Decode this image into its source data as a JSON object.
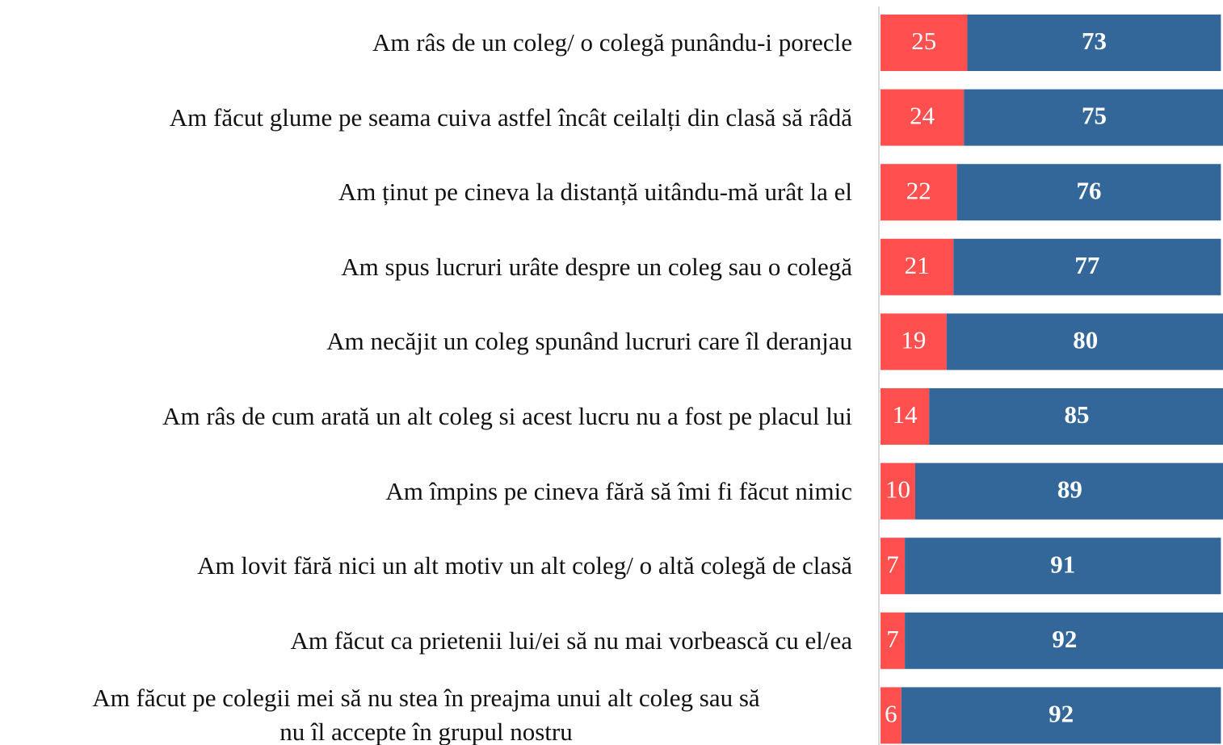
{
  "chart_data": {
    "type": "stacked-bar-horizontal",
    "categories": [
      "Am râs de un coleg/ o colegă punându-i porecle",
      "Am făcut glume pe seama cuiva astfel încât ceilalți din clasă să râdă",
      "Am ținut pe cineva la distanță uitându-mă urât la el",
      "Am spus lucruri urâte despre un coleg sau o colegă",
      "Am necăjit un coleg spunând lucruri care îl deranjau",
      "Am râs de cum arată un alt coleg si acest lucru nu a fost pe placul lui",
      "Am împins pe cineva fără să îmi fi făcut nimic",
      "Am lovit fără nici un alt motiv un alt coleg/ o altă colegă de clasă",
      "Am făcut ca prietenii lui/ei să nu mai vorbească cu el/ea",
      "Am făcut pe colegii mei să nu stea în preajma unui alt coleg sau să\nnu îl accepte în grupul nostru"
    ],
    "series": [
      {
        "color": "#ff4f4f",
        "values": [
          25,
          24,
          22,
          21,
          19,
          14,
          10,
          7,
          7,
          6
        ]
      },
      {
        "color": "#336699",
        "values": [
          73,
          75,
          76,
          77,
          80,
          85,
          89,
          91,
          92,
          92
        ]
      }
    ],
    "xlim": [
      0,
      100
    ]
  }
}
